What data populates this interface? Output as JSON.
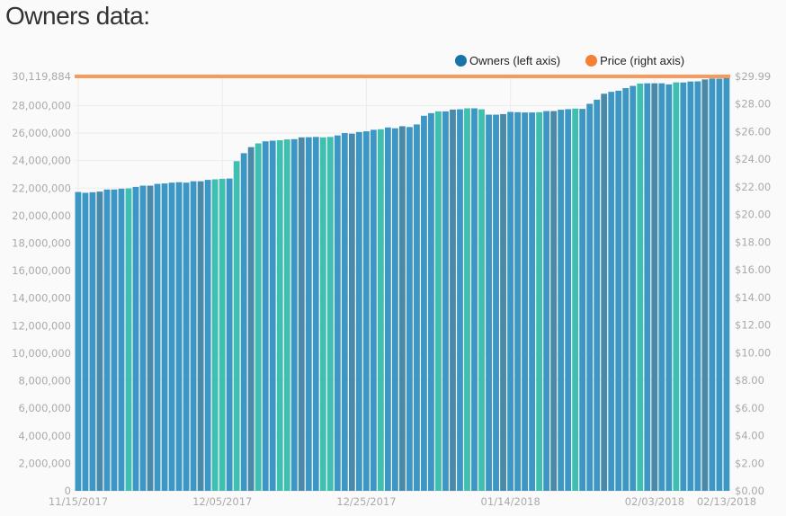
{
  "title": "Owners data:",
  "legend": [
    {
      "label": "Owners (left axis)",
      "color": "#1a73a8"
    },
    {
      "label": "Price (right axis)",
      "color": "#f57f36"
    }
  ],
  "chart_data": {
    "type": "bar",
    "x_start": "11/15/2017",
    "x_end": "02/13/2018",
    "x_tick_labels": [
      "11/15/2017",
      "12/05/2017",
      "12/25/2017",
      "01/14/2018",
      "02/03/2018",
      "02/13/2018"
    ],
    "x_tick_days": [
      0,
      20,
      40,
      60,
      80,
      90
    ],
    "left_axis": {
      "ticks": [
        0,
        2000000,
        4000000,
        6000000,
        8000000,
        10000000,
        12000000,
        14000000,
        16000000,
        18000000,
        20000000,
        22000000,
        24000000,
        26000000,
        28000000,
        30119884
      ],
      "tick_labels": [
        "0",
        "2,000,000",
        "4,000,000",
        "6,000,000",
        "8,000,000",
        "10,000,000",
        "12,000,000",
        "14,000,000",
        "16,000,000",
        "18,000,000",
        "20,000,000",
        "22,000,000",
        "24,000,000",
        "26,000,000",
        "28,000,000",
        "30,119,884"
      ],
      "ylim": [
        0,
        30119884
      ]
    },
    "right_axis": {
      "ticks": [
        0,
        2,
        4,
        6,
        8,
        10,
        12,
        14,
        16,
        18,
        20,
        22,
        24,
        26,
        28,
        29.99
      ],
      "tick_labels": [
        "$0.00",
        "$2.00",
        "$4.00",
        "$6.00",
        "$8.00",
        "$10.00",
        "$12.00",
        "$14.00",
        "$16.00",
        "$18.00",
        "$20.00",
        "$22.00",
        "$24.00",
        "$26.00",
        "$28.00",
        "$29.99"
      ],
      "ylim": [
        0,
        29.99
      ]
    },
    "grid": true,
    "legend_position": "top-right",
    "series": [
      {
        "name": "Owners (left axis)",
        "type": "bar",
        "axis": "left",
        "color": "#3d97c4",
        "highlight_color": "#3fbfb0",
        "weekly_color": "#4a8aa8",
        "highlight_days": [
          7,
          19,
          20,
          22,
          25,
          28,
          29,
          34,
          35,
          42,
          50,
          54,
          56,
          64,
          69,
          78,
          83
        ],
        "weekly_days": [
          3,
          10,
          17,
          24,
          31,
          38,
          45,
          52,
          59,
          66,
          73,
          80,
          87
        ],
        "values_millions": [
          21.72,
          21.66,
          21.7,
          21.75,
          21.9,
          21.9,
          21.96,
          21.98,
          22.09,
          22.18,
          22.18,
          22.31,
          22.34,
          22.4,
          22.43,
          22.4,
          22.5,
          22.5,
          22.6,
          22.64,
          22.68,
          22.7,
          23.96,
          24.54,
          24.98,
          25.25,
          25.4,
          25.45,
          25.48,
          25.54,
          25.56,
          25.69,
          25.7,
          25.72,
          25.69,
          25.72,
          25.83,
          26.0,
          25.96,
          26.08,
          26.13,
          26.24,
          26.28,
          26.41,
          26.35,
          26.5,
          26.44,
          26.63,
          27.26,
          27.45,
          27.58,
          27.58,
          27.71,
          27.73,
          27.8,
          27.8,
          27.73,
          27.34,
          27.34,
          27.38,
          27.54,
          27.52,
          27.5,
          27.5,
          27.52,
          27.6,
          27.6,
          27.7,
          27.74,
          27.78,
          27.76,
          28.13,
          28.43,
          28.86,
          29.0,
          29.08,
          29.27,
          29.43,
          29.6,
          29.62,
          29.62,
          29.62,
          29.54,
          29.69,
          29.68,
          29.75,
          29.76,
          29.9,
          29.97,
          29.96,
          30.12
        ]
      },
      {
        "name": "Price (right axis)",
        "type": "line",
        "axis": "right",
        "color": "#f99a5c",
        "value": 29.99
      }
    ]
  }
}
